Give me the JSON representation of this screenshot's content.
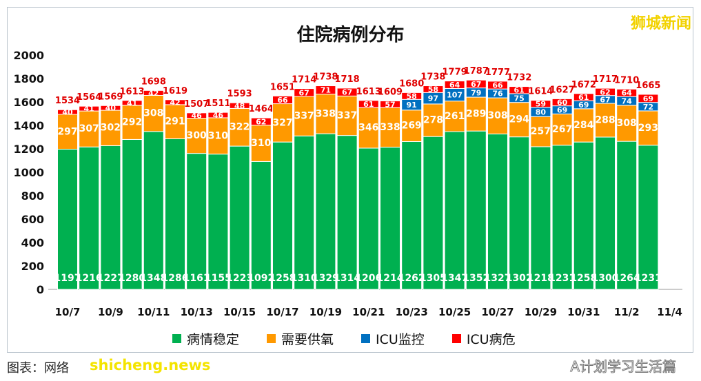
{
  "watermark": "狮城新闻",
  "source_note": "图表：网络",
  "site_watermark": "shicheng.news",
  "account_watermark": "A计划学习生活篇",
  "colors": {
    "stable": "#00b050",
    "oxygen": "#ff9900",
    "icu_monitor": "#0070c0",
    "icu_critical": "#ff0000"
  },
  "chart_data": {
    "type": "bar",
    "stacked": true,
    "title": "住院病例分布",
    "categories": [
      "10/7",
      "10/8",
      "10/9",
      "10/10",
      "10/11",
      "10/12",
      "10/13",
      "10/14",
      "10/15",
      "10/16",
      "10/17",
      "10/18",
      "10/19",
      "10/20",
      "10/21",
      "10/22",
      "10/23",
      "10/24",
      "10/25",
      "10/26",
      "10/27",
      "10/28",
      "10/29",
      "10/30",
      "10/31",
      "11/1",
      "11/2",
      "11/3"
    ],
    "xtick_labels": [
      "10/7",
      "10/9",
      "10/11",
      "10/13",
      "10/15",
      "10/17",
      "10/19",
      "10/21",
      "10/23",
      "10/25",
      "10/27",
      "10/29",
      "10/31",
      "11/2",
      "11/4"
    ],
    "ylim": [
      0,
      2000
    ],
    "yticks": [
      0,
      200,
      400,
      600,
      800,
      1000,
      1200,
      1400,
      1600,
      1800,
      2000
    ],
    "grid": false,
    "legend_position": "bottom",
    "series": [
      {
        "name": "病情稳定",
        "values": [
          1197,
          1216,
          1227,
          1280,
          1348,
          1286,
          1161,
          1155,
          1223,
          1092,
          1258,
          1310,
          1329,
          1314,
          1206,
          1214,
          1262,
          1305,
          1347,
          1352,
          1327,
          1302,
          1218,
          1231,
          1258,
          1300,
          1264,
          1231
        ]
      },
      {
        "name": "需要供氧",
        "values": [
          297,
          307,
          302,
          292,
          308,
          291,
          300,
          310,
          322,
          310,
          327,
          337,
          338,
          337,
          346,
          338,
          269,
          278,
          261,
          289,
          308,
          294,
          257,
          267,
          284,
          288,
          308,
          293
        ]
      },
      {
        "name": "ICU监控",
        "values": [
          0,
          0,
          0,
          0,
          0,
          0,
          0,
          0,
          0,
          0,
          0,
          0,
          0,
          0,
          0,
          0,
          91,
          97,
          107,
          79,
          76,
          75,
          80,
          69,
          69,
          67,
          74,
          72
        ]
      },
      {
        "name": "ICU病危",
        "values": [
          40,
          41,
          40,
          41,
          42,
          42,
          46,
          46,
          48,
          62,
          66,
          67,
          71,
          67,
          61,
          57,
          58,
          58,
          64,
          67,
          66,
          61,
          59,
          60,
          61,
          62,
          64,
          69
        ]
      }
    ],
    "totals": [
      1534,
      1564,
      1569,
      1613,
      1698,
      1619,
      1507,
      1511,
      1593,
      1464,
      1651,
      1714,
      1738,
      1718,
      1613,
      1609,
      1680,
      1738,
      1779,
      1787,
      1777,
      1732,
      1614,
      1627,
      1672,
      1717,
      1710,
      1665
    ]
  }
}
